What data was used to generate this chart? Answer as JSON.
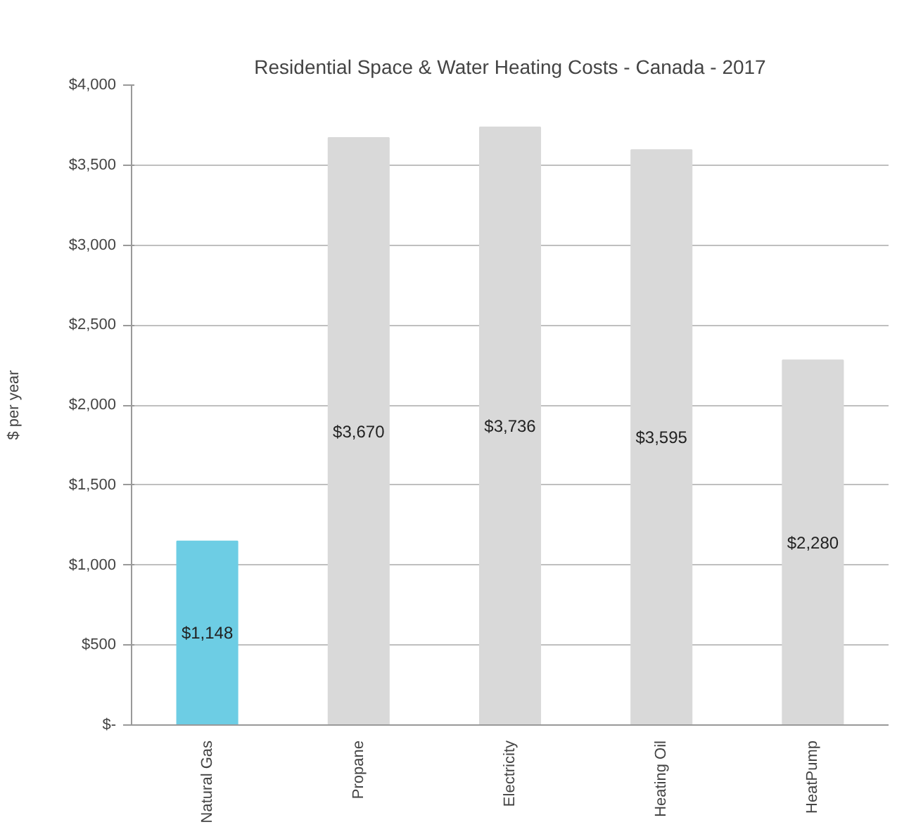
{
  "chart_data": {
    "type": "bar",
    "title": "Residential Space & Water Heating Costs - Canada - 2017",
    "ylabel": "$ per year",
    "categories": [
      "Natural Gas",
      "Propane",
      "Electricity",
      "Heating Oil",
      "HeatPump"
    ],
    "values": [
      1148,
      3670,
      3736,
      3595,
      2280
    ],
    "colors": [
      "#6dcde4",
      "#d9d9d9",
      "#d9d9d9",
      "#d9d9d9",
      "#d9d9d9"
    ],
    "value_labels": [
      "$1,148",
      "$3,670",
      "$3,736",
      "$3,595",
      "$2,280"
    ],
    "ylim": [
      0,
      4000
    ],
    "yticks": [
      {
        "value": 0,
        "label": "$-"
      },
      {
        "value": 500,
        "label": "$500"
      },
      {
        "value": 1000,
        "label": "$1,000"
      },
      {
        "value": 1500,
        "label": "$1,500"
      },
      {
        "value": 2000,
        "label": "$2,000"
      },
      {
        "value": 2500,
        "label": "$2,500"
      },
      {
        "value": 3000,
        "label": "$3,000"
      },
      {
        "value": 3500,
        "label": "$3,500"
      },
      {
        "value": 4000,
        "label": "$4,000"
      }
    ],
    "grid": "y"
  }
}
